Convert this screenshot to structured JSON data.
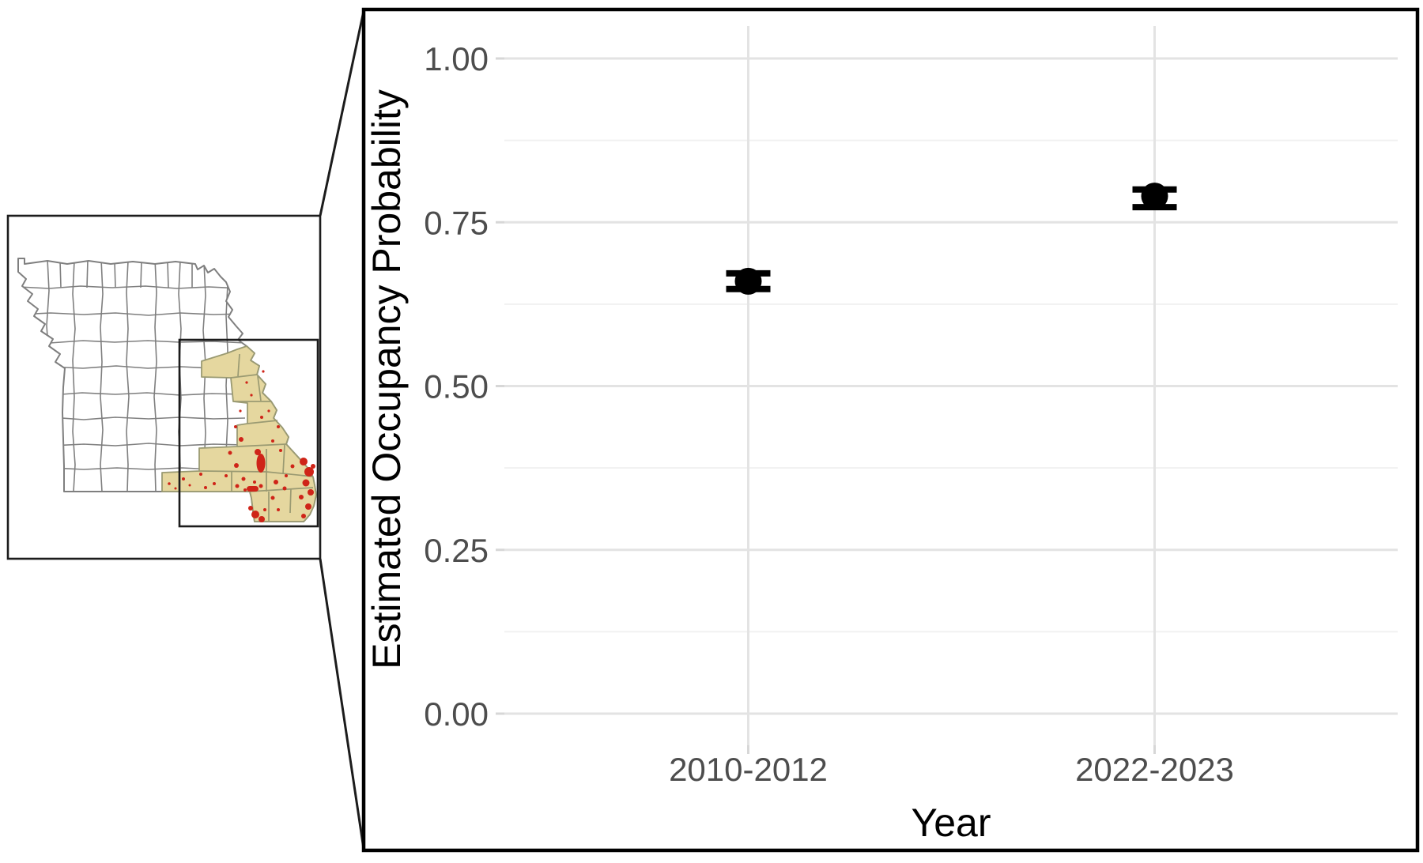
{
  "colors": {
    "chart_border": "#000000",
    "frame_color": "#1c1c1c",
    "grid_major": "#e3e3e3",
    "grid_minor": "#f1f1f1",
    "tick_mark": "#d7d7d7",
    "tick_label": "#4d4d4d",
    "axis_title": "#000000",
    "point_color": "#000000",
    "county_border": "#7f7f7f",
    "study_region_fill": "#e5d79f",
    "study_region_border": "#9a9a72",
    "detection_red": "#cf2418"
  },
  "chart_data": {
    "type": "scatter",
    "title": "",
    "xlabel": "Year",
    "ylabel": "Estimated Occupancy Probability",
    "categories": [
      "2010-2012",
      "2022-2023"
    ],
    "series": [
      {
        "name": "estimated-occupancy",
        "values": [
          0.66,
          0.79
        ],
        "ci_lower": [
          0.648,
          0.773
        ],
        "ci_upper": [
          0.672,
          0.8
        ]
      }
    ],
    "ylim": [
      0,
      1
    ],
    "y_ticks": {
      "values": [
        0.0,
        0.25,
        0.5,
        0.75,
        1.0
      ],
      "labels": [
        "0.00",
        "0.25",
        "0.50",
        "0.75",
        "1.00"
      ]
    },
    "y_minor_ticks": [
      0.125,
      0.375,
      0.625,
      0.875
    ],
    "grid": true,
    "legend": false,
    "marker": "point-with-vertical-errorbar-caps"
  }
}
